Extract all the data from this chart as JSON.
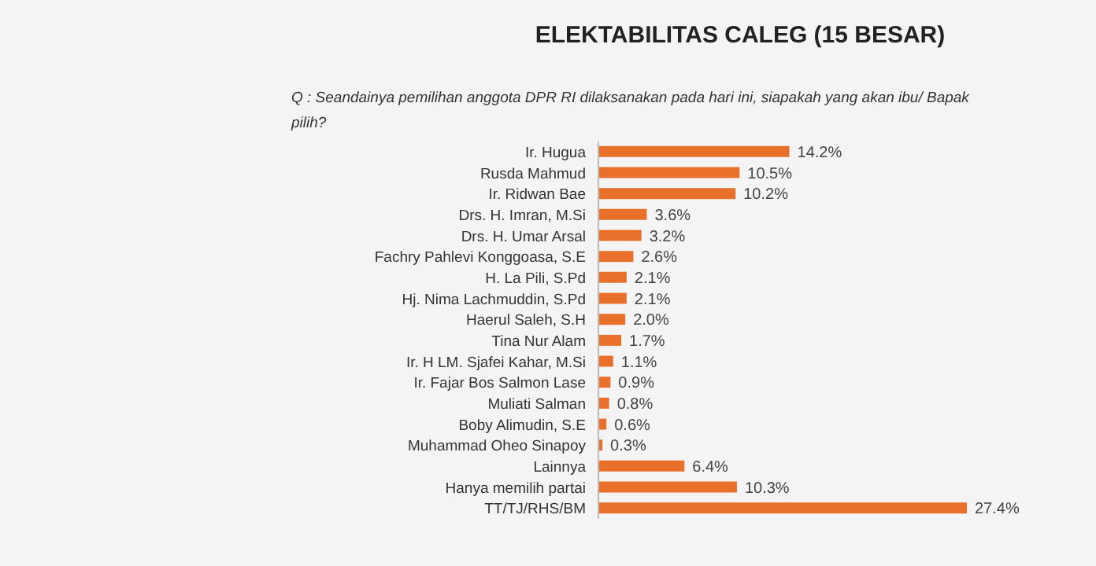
{
  "chart_data": {
    "type": "bar",
    "orientation": "horizontal",
    "title": "ELEKTABILITAS CALEG (15 BESAR)",
    "subtitle": "Q : Seandainya pemilihan anggota DPR RI dilaksanakan pada hari ini, siapakah yang akan ibu/ Bapak pilih?",
    "categories": [
      "Ir. Hugua",
      "Rusda Mahmud",
      "Ir. Ridwan Bae",
      "Drs. H. Imran, M.Si",
      "Drs. H. Umar Arsal",
      "Fachry Pahlevi Konggoasa, S.E",
      "H. La Pili, S.Pd",
      "Hj. Nima Lachmuddin, S.Pd",
      "Haerul Saleh, S.H",
      "Tina Nur Alam",
      "Ir. H LM. Sjafei Kahar, M.Si",
      "Ir. Fajar Bos Salmon Lase",
      "Muliati Salman",
      "Boby Alimudin, S.E",
      "Muhammad Oheo Sinapoy",
      "Lainnya",
      "Hanya memilih partai",
      "TT/TJ/RHS/BM"
    ],
    "values": [
      14.2,
      10.5,
      10.2,
      3.6,
      3.2,
      2.6,
      2.1,
      2.1,
      2.0,
      1.7,
      1.1,
      0.9,
      0.8,
      0.6,
      0.3,
      6.4,
      10.3,
      27.4
    ],
    "value_labels": [
      "14.2%",
      "10.5%",
      "10.2%",
      "3.6%",
      "3.2%",
      "2.6%",
      "2.1%",
      "2.1%",
      "2.0%",
      "1.7%",
      "1.1%",
      "0.9%",
      "0.8%",
      "0.6%",
      "0.3%",
      "6.4%",
      "10.3%",
      "27.4%"
    ],
    "color": "#e8702a",
    "legend": false,
    "grid": false
  }
}
